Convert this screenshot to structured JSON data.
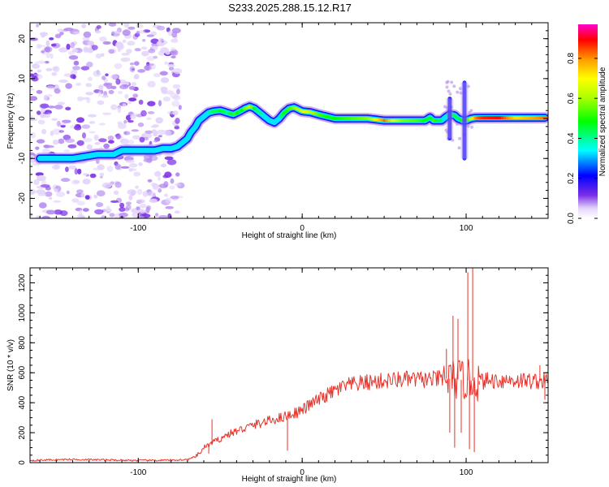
{
  "title": "S233.2025.288.15.12.R17",
  "colors": {
    "snr_line": "#e8322a",
    "frame": "#000000",
    "noise_purple": "#7a2ee6"
  },
  "chart_data": [
    {
      "type": "heatmap",
      "name": "spectrogram",
      "xlabel": "Height of straight line (km)",
      "ylabel": "Frequency (Hz)",
      "xlim": [
        -166,
        150
      ],
      "ylim": [
        -25,
        24
      ],
      "xticks": [
        -100,
        0,
        100
      ],
      "xtick_labels": [
        "-100",
        "0",
        "100"
      ],
      "yticks": [
        -20,
        -10,
        0,
        10,
        20
      ],
      "ytick_labels": [
        "-20",
        "-10",
        "0",
        "10",
        "20"
      ],
      "colorbar": {
        "label": "Normalized spectral amplitude",
        "range": [
          0.0,
          0.97
        ],
        "ticks": [
          0.0,
          0.2,
          0.4,
          0.6,
          0.8
        ],
        "tick_labels": [
          "0.0",
          "0.2",
          "0.4",
          "0.6",
          "0.8"
        ]
      },
      "ridge": {
        "x": [
          -160,
          -153,
          -140,
          -125,
          -115,
          -110,
          -103,
          -97,
          -90,
          -85,
          -80,
          -76,
          -73,
          -70,
          -68,
          -65,
          -63,
          -60,
          -57,
          -54,
          -50,
          -46,
          -42,
          -38,
          -35,
          -32,
          -29,
          -26,
          -23,
          -20,
          -17,
          -14,
          -11,
          -8,
          -5,
          -2,
          0,
          5,
          10,
          15,
          20,
          30,
          40,
          50,
          60,
          70,
          75,
          78,
          80,
          85,
          88,
          90,
          93,
          95,
          98,
          100,
          103,
          106,
          110,
          120,
          130,
          140,
          148
        ],
        "y": [
          -10,
          -10,
          -10,
          -9,
          -9,
          -8,
          -8,
          -8,
          -8,
          -7.5,
          -7.5,
          -7,
          -6,
          -5,
          -3.5,
          -2,
          -0.5,
          0.5,
          1.5,
          1.8,
          2,
          1.5,
          1,
          1.8,
          2.5,
          3,
          2.5,
          1.5,
          0.5,
          -0.5,
          -1,
          0,
          1.5,
          2.5,
          2.8,
          2.2,
          1.8,
          1.6,
          1,
          0.5,
          0,
          0,
          0,
          -0.5,
          -0.5,
          -0.5,
          -0.5,
          0.3,
          -0.5,
          -0.5,
          0.5,
          1,
          0.8,
          0,
          -0.5,
          -0.5,
          0,
          0.2,
          0.2,
          0.2,
          0.2,
          0.2,
          0.2
        ],
        "amplitude": [
          0.35,
          0.35,
          0.3,
          0.3,
          0.32,
          0.3,
          0.33,
          0.3,
          0.3,
          0.32,
          0.35,
          0.36,
          0.38,
          0.38,
          0.36,
          0.38,
          0.36,
          0.4,
          0.42,
          0.45,
          0.5,
          0.42,
          0.55,
          0.45,
          0.6,
          0.65,
          0.45,
          0.42,
          0.4,
          0.38,
          0.38,
          0.42,
          0.5,
          0.55,
          0.6,
          0.65,
          0.7,
          0.65,
          0.55,
          0.5,
          0.5,
          0.55,
          0.6,
          0.85,
          0.6,
          0.55,
          0.5,
          0.45,
          0.55,
          0.4,
          0.4,
          0.45,
          0.45,
          0.45,
          0.5,
          0.5,
          0.7,
          0.85,
          0.9,
          0.92,
          0.75,
          0.8,
          0.85
        ]
      }
    },
    {
      "type": "line",
      "name": "snr",
      "xlabel": "Height of straight line (km)",
      "ylabel": "SNR (10 * v/v)",
      "xlim": [
        -166,
        150
      ],
      "ylim": [
        0,
        1300
      ],
      "xticks": [
        -100,
        0,
        100
      ],
      "xtick_labels": [
        "-100",
        "0",
        "100"
      ],
      "yticks": [
        0,
        200,
        400,
        600,
        800,
        1000,
        1200
      ],
      "ytick_labels": [
        "0",
        "200",
        "400",
        "600",
        "800",
        "1000",
        "1200"
      ],
      "trend": {
        "x": [
          -166,
          -140,
          -120,
          -100,
          -80,
          -70,
          -65,
          -62,
          -60,
          -55,
          -50,
          -45,
          -40,
          -35,
          -30,
          -25,
          -20,
          -15,
          -10,
          -5,
          0,
          5,
          10,
          15,
          20,
          25,
          30,
          40,
          50,
          60,
          70,
          80,
          85,
          90,
          95,
          100,
          105,
          110,
          120,
          130,
          140,
          150
        ],
        "y": [
          15,
          22,
          18,
          15,
          16,
          20,
          40,
          70,
          100,
          130,
          160,
          190,
          210,
          230,
          250,
          265,
          280,
          295,
          310,
          330,
          350,
          390,
          420,
          450,
          480,
          505,
          520,
          535,
          545,
          555,
          555,
          555,
          560,
          560,
          555,
          550,
          545,
          545,
          550,
          550,
          545,
          545
        ]
      },
      "spikes": [
        {
          "x": -55,
          "y": 290
        },
        {
          "x": -57,
          "y": 60
        },
        {
          "x": -9,
          "y": 80
        },
        {
          "x": 88,
          "y": 760
        },
        {
          "x": 90,
          "y": 200
        },
        {
          "x": 92,
          "y": 980
        },
        {
          "x": 93,
          "y": 100
        },
        {
          "x": 95,
          "y": 960
        },
        {
          "x": 97,
          "y": 200
        },
        {
          "x": 101,
          "y": 1270
        },
        {
          "x": 102,
          "y": 90
        },
        {
          "x": 104,
          "y": 1300
        },
        {
          "x": 105,
          "y": 70
        },
        {
          "x": 108,
          "y": 520
        },
        {
          "x": 145,
          "y": 650
        },
        {
          "x": 148,
          "y": 420
        }
      ]
    }
  ]
}
